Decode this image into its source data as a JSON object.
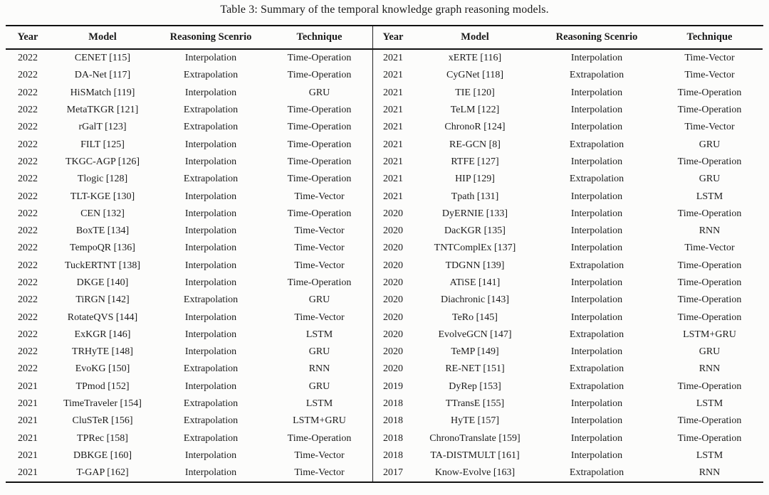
{
  "title": "Table 3: Summary of the temporal knowledge graph reasoning models.",
  "table": {
    "columns": [
      "Year",
      "Model",
      "Reasoning Scenrio",
      "Technique"
    ],
    "left_rows": [
      [
        "2022",
        "CENET [115]",
        "Interpolation",
        "Time-Operation"
      ],
      [
        "2022",
        "DA-Net [117]",
        "Extrapolation",
        "Time-Operation"
      ],
      [
        "2022",
        "HiSMatch [119]",
        "Interpolation",
        "GRU"
      ],
      [
        "2022",
        "MetaTKGR [121]",
        "Extrapolation",
        "Time-Operation"
      ],
      [
        "2022",
        "rGalT [123]",
        "Extrapolation",
        "Time-Operation"
      ],
      [
        "2022",
        "FILT [125]",
        "Interpolation",
        "Time-Operation"
      ],
      [
        "2022",
        "TKGC-AGP [126]",
        "Interpolation",
        "Time-Operation"
      ],
      [
        "2022",
        "Tlogic [128]",
        "Extrapolation",
        "Time-Operation"
      ],
      [
        "2022",
        "TLT-KGE [130]",
        "Interpolation",
        "Time-Vector"
      ],
      [
        "2022",
        "CEN [132]",
        "Interpolation",
        "Time-Operation"
      ],
      [
        "2022",
        "BoxTE [134]",
        "Interpolation",
        "Time-Vector"
      ],
      [
        "2022",
        "TempoQR [136]",
        "Interpolation",
        "Time-Vector"
      ],
      [
        "2022",
        "TuckERTNT [138]",
        "Interpolation",
        "Time-Vector"
      ],
      [
        "2022",
        "DKGE [140]",
        "Interpolation",
        "Time-Operation"
      ],
      [
        "2022",
        "TiRGN [142]",
        "Extrapolation",
        "GRU"
      ],
      [
        "2022",
        "RotateQVS [144]",
        "Interpolation",
        "Time-Vector"
      ],
      [
        "2022",
        "ExKGR [146]",
        "Interpolation",
        "LSTM"
      ],
      [
        "2022",
        "TRHyTE [148]",
        "Interpolation",
        "GRU"
      ],
      [
        "2022",
        "EvoKG [150]",
        "Extrapolation",
        "RNN"
      ],
      [
        "2021",
        "TPmod [152]",
        "Interpolation",
        "GRU"
      ],
      [
        "2021",
        "TimeTraveler [154]",
        "Extrapolation",
        "LSTM"
      ],
      [
        "2021",
        "CluSTeR [156]",
        "Extrapolation",
        "LSTM+GRU"
      ],
      [
        "2021",
        "TPRec [158]",
        "Extrapolation",
        "Time-Operation"
      ],
      [
        "2021",
        "DBKGE [160]",
        "Interpolation",
        "Time-Vector"
      ],
      [
        "2021",
        "T-GAP [162]",
        "Interpolation",
        "Time-Vector"
      ]
    ],
    "right_rows": [
      [
        "2021",
        "xERTE [116]",
        "Interpolation",
        "Time-Vector"
      ],
      [
        "2021",
        "CyGNet [118]",
        "Extrapolation",
        "Time-Vector"
      ],
      [
        "2021",
        "TIE [120]",
        "Interpolation",
        "Time-Operation"
      ],
      [
        "2021",
        "TeLM [122]",
        "Interpolation",
        "Time-Operation"
      ],
      [
        "2021",
        "ChronoR [124]",
        "Interpolation",
        "Time-Vector"
      ],
      [
        "2021",
        "RE-GCN [8]",
        "Extrapolation",
        "GRU"
      ],
      [
        "2021",
        "RTFE [127]",
        "Interpolation",
        "Time-Operation"
      ],
      [
        "2021",
        "HIP [129]",
        "Extrapolation",
        "GRU"
      ],
      [
        "2021",
        "Tpath [131]",
        "Interpolation",
        "LSTM"
      ],
      [
        "2020",
        "DyERNIE [133]",
        "Interpolation",
        "Time-Operation"
      ],
      [
        "2020",
        "DacKGR [135]",
        "Interpolation",
        "RNN"
      ],
      [
        "2020",
        "TNTComplEx [137]",
        "Interpolation",
        "Time-Vector"
      ],
      [
        "2020",
        "TDGNN [139]",
        "Extrapolation",
        "Time-Operation"
      ],
      [
        "2020",
        "ATiSE [141]",
        "Interpolation",
        "Time-Operation"
      ],
      [
        "2020",
        "Diachronic [143]",
        "Interpolation",
        "Time-Operation"
      ],
      [
        "2020",
        "TeRo [145]",
        "Interpolation",
        "Time-Operation"
      ],
      [
        "2020",
        "EvolveGCN [147]",
        "Extrapolation",
        "LSTM+GRU"
      ],
      [
        "2020",
        "TeMP [149]",
        "Interpolation",
        "GRU"
      ],
      [
        "2020",
        "RE-NET [151]",
        "Extrapolation",
        "RNN"
      ],
      [
        "2019",
        "DyRep [153]",
        "Extrapolation",
        "Time-Operation"
      ],
      [
        "2018",
        "TTransE [155]",
        "Interpolation",
        "LSTM"
      ],
      [
        "2018",
        "HyTE [157]",
        "Interpolation",
        "Time-Operation"
      ],
      [
        "2018",
        "ChronoTranslate [159]",
        "Interpolation",
        "Time-Operation"
      ],
      [
        "2018",
        "TA-DISTMULT [161]",
        "Interpolation",
        "LSTM"
      ],
      [
        "2017",
        "Know-Evolve [163]",
        "Extrapolation",
        "RNN"
      ]
    ]
  }
}
